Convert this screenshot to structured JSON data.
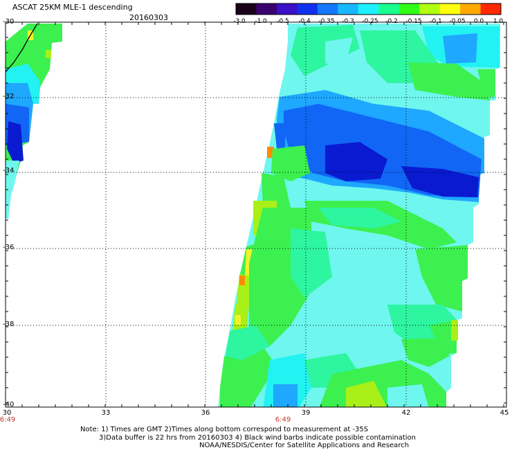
{
  "title": "ASCAT 25KM MLE-1 descending",
  "date": "20160303",
  "colorbar": {
    "labels": [
      "-3.0",
      "-1.0",
      "-0.5",
      "-0.4",
      "-0.35",
      "-0.3",
      "-0.25",
      "-0.2",
      "-0.15",
      "-0.1",
      "-0.05",
      "0.0",
      "1.0"
    ],
    "colors": [
      "#1a0018",
      "#3a0070",
      "#3a10c8",
      "#1030f0",
      "#1478ff",
      "#18b8ff",
      "#1ef0ff",
      "#18ff90",
      "#30ff18",
      "#b0ff10",
      "#ffff10",
      "#ffa800",
      "#ff2800"
    ]
  },
  "axes": {
    "y_labels": [
      "-30",
      "-32",
      "-34",
      "-36",
      "-38",
      "-40"
    ],
    "x_labels": [
      "30",
      "33",
      "36",
      "39",
      "42",
      "45"
    ],
    "time_labels": [
      "6:49",
      "6:49"
    ]
  },
  "swath_colors": {
    "deep_blue": "#0a1ad0",
    "blue": "#1266f5",
    "light_blue": "#1ea8ff",
    "cyan": "#22f2f2",
    "pale_cyan": "#6ff6ee",
    "mint": "#2ef5a0",
    "green": "#3cf050",
    "lime": "#a8f018",
    "yellow": "#f2f22a",
    "orange": "#ff8c00"
  },
  "notes": {
    "line1": "Note: 1) Times are GMT 2)Times along bottom correspond to measurement at -35S",
    "line2": "3)Data buffer is 22 hrs from 20160303 4) Black wind barbs indicate possible contamination",
    "line3": "NOAA/NESDIS/Center for Satellite Applications and Research"
  }
}
